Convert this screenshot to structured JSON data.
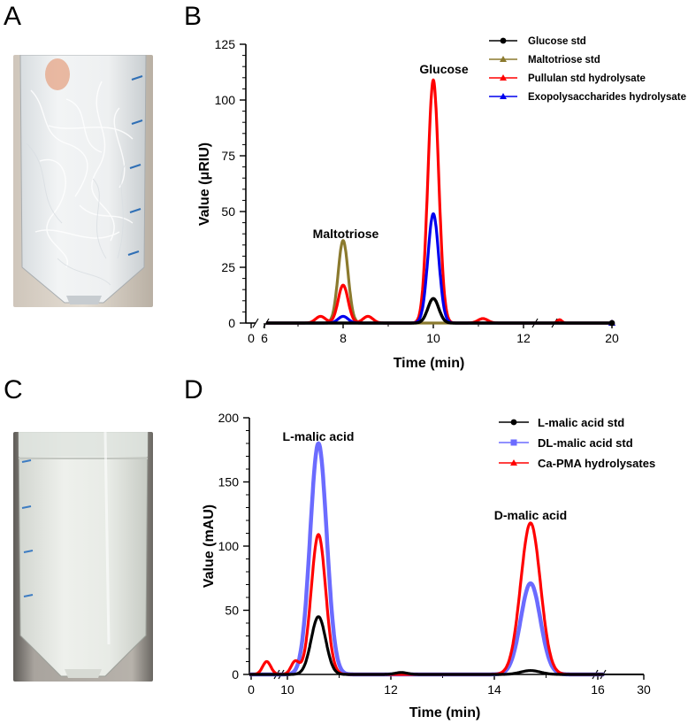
{
  "panels": {
    "a": {
      "letter": "A"
    },
    "b": {
      "letter": "B"
    },
    "c": {
      "letter": "C"
    },
    "d": {
      "letter": "D"
    }
  },
  "colors": {
    "glucose_std": "#000000",
    "maltotriose_std": "#8b7a2e",
    "pullulan": "#ff0000",
    "eps": "#0000ee",
    "l_malic": "#000000",
    "dl_malic": "#6b6bff",
    "ca_pma": "#ff0000"
  },
  "chart_data": [
    {
      "type": "line",
      "panel": "B",
      "xlabel": "Time (min)",
      "ylabel": "Value (μRIU)",
      "ylim": [
        0,
        125
      ],
      "yticks": [
        0,
        25,
        50,
        75,
        100,
        125
      ],
      "x_ticks": [
        "0",
        "6",
        "8",
        "10",
        "12",
        "20"
      ],
      "x_axis_breaks": [
        [
          0,
          6
        ],
        [
          12,
          20
        ]
      ],
      "legend_position": "top-right",
      "annotations": [
        "Glucose",
        "Maltotriose"
      ],
      "series": [
        {
          "name": "Glucose std",
          "marker": "circle",
          "color": "#000000",
          "peaks": [
            {
              "x": 10.0,
              "y": 11
            }
          ]
        },
        {
          "name": "Maltotriose std",
          "marker": "triangle",
          "color": "#8b7a2e",
          "peaks": [
            {
              "x": 8.0,
              "y": 37
            }
          ]
        },
        {
          "name": "Pullulan std hydrolysate",
          "marker": "triangle",
          "color": "#ff0000",
          "peaks": [
            {
              "x": 7.5,
              "y": 3
            },
            {
              "x": 8.0,
              "y": 17
            },
            {
              "x": 8.55,
              "y": 3
            },
            {
              "x": 10.0,
              "y": 109
            },
            {
              "x": 11.1,
              "y": 2
            },
            {
              "x": 12.8,
              "y": 1.5
            }
          ]
        },
        {
          "name": "Exopolysaccharides hydrolysate",
          "marker": "triangle",
          "color": "#0000ee",
          "peaks": [
            {
              "x": 8.0,
              "y": 3
            },
            {
              "x": 10.0,
              "y": 49
            }
          ]
        }
      ]
    },
    {
      "type": "line",
      "panel": "D",
      "xlabel": "Time (min)",
      "ylabel": "Value (mAU)",
      "ylim": [
        0,
        200
      ],
      "yticks": [
        0,
        50,
        100,
        150,
        200
      ],
      "x_ticks": [
        "0",
        "10",
        "12",
        "14",
        "16",
        "30"
      ],
      "x_axis_breaks": [
        [
          0,
          9.2
        ],
        [
          16.2,
          30
        ]
      ],
      "legend_position": "top-right",
      "annotations": [
        "L-malic acid",
        "D-malic acid"
      ],
      "series": [
        {
          "name": "L-malic acid std",
          "marker": "circle",
          "color": "#000000",
          "peaks": [
            {
              "x": 10.6,
              "y": 45
            },
            {
              "x": 12.2,
              "y": 1.5
            },
            {
              "x": 14.7,
              "y": 3
            }
          ]
        },
        {
          "name": "DL-malic acid std",
          "marker": "square",
          "color": "#6b6bff",
          "peaks": [
            {
              "x": 10.6,
              "y": 180
            },
            {
              "x": 14.7,
              "y": 71
            }
          ]
        },
        {
          "name": "Ca-PMA hydrolysates",
          "marker": "triangle",
          "color": "#ff0000",
          "peaks": [
            {
              "x": 9.6,
              "y": 10
            },
            {
              "x": 10.15,
              "y": 10
            },
            {
              "x": 10.6,
              "y": 109
            },
            {
              "x": 14.7,
              "y": 118
            }
          ]
        }
      ]
    }
  ]
}
